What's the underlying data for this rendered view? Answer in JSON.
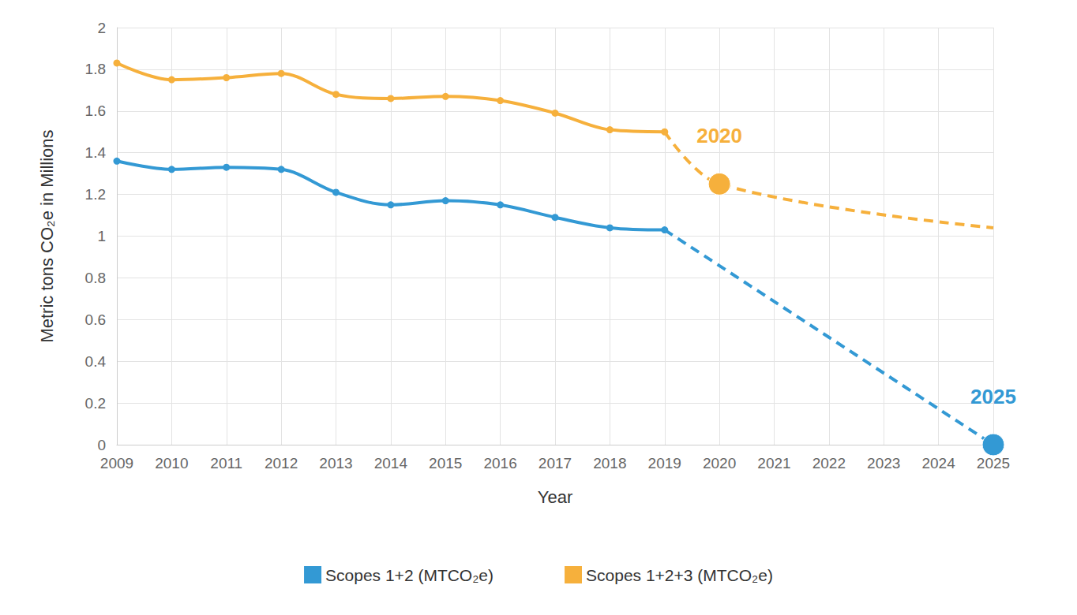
{
  "chart_data": {
    "type": "line",
    "x_label": "Year",
    "y_label": "Metric tons CO₂e in Millions",
    "x": [
      2009,
      2010,
      2011,
      2012,
      2013,
      2014,
      2015,
      2016,
      2017,
      2018,
      2019,
      2020,
      2021,
      2022,
      2023,
      2024,
      2025
    ],
    "series": [
      {
        "name": "Scopes 1+2 (MTCO₂e)",
        "color": "#3399d4",
        "marker": "circle",
        "line_style": "solid",
        "values": [
          1.36,
          1.32,
          1.33,
          1.32,
          1.21,
          1.15,
          1.17,
          1.15,
          1.09,
          1.04,
          1.03,
          null,
          null,
          null,
          null,
          null,
          null
        ],
        "projection": [
          null,
          null,
          null,
          null,
          null,
          null,
          null,
          null,
          null,
          null,
          1.03,
          null,
          null,
          null,
          null,
          null,
          0
        ]
      },
      {
        "name": "Scopes 1+2+3 (MTCO₂e)",
        "color": "#f6b03c",
        "marker": "circle",
        "line_style": "solid",
        "values": [
          1.83,
          1.75,
          1.76,
          1.78,
          1.68,
          1.66,
          1.67,
          1.65,
          1.59,
          1.51,
          1.5,
          null,
          null,
          null,
          null,
          null,
          null
        ],
        "projection": [
          null,
          null,
          null,
          null,
          null,
          null,
          null,
          null,
          null,
          null,
          1.5,
          1.25,
          null,
          null,
          null,
          null,
          1.04
        ]
      }
    ],
    "annotations": [
      {
        "text": "2020",
        "x": 2020,
        "y": 1.25,
        "series": 1
      },
      {
        "text": "2025",
        "x": 2025,
        "y": 0,
        "series": 0
      }
    ],
    "xlim": [
      2009,
      2025
    ],
    "xticks": [
      2009,
      2010,
      2011,
      2012,
      2013,
      2014,
      2015,
      2016,
      2017,
      2018,
      2019,
      2020,
      2021,
      2022,
      2023,
      2024,
      2025
    ],
    "ylim": [
      0,
      2
    ],
    "yticks": [
      0,
      0.2,
      0.4,
      0.6,
      0.8,
      1,
      1.2,
      1.4,
      1.6,
      1.8,
      2
    ],
    "grid": true,
    "legend": "bottom"
  }
}
